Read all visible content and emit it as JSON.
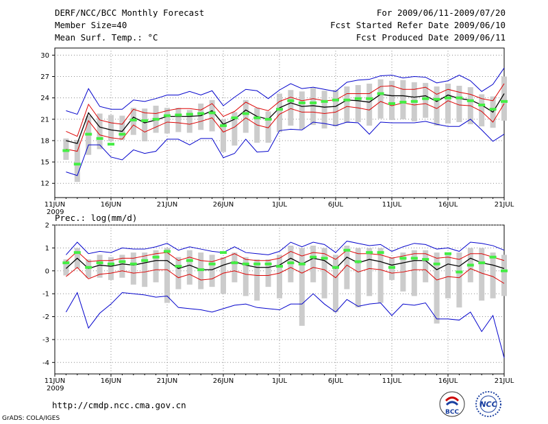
{
  "header": {
    "title": "DERF/NCC/BCC Monthly Forecast",
    "member_size": "Member Size=40",
    "variable": "Mean Surf. Temp.: °C",
    "period": "For 2009/06/11-2009/07/20",
    "started": "Fcst Started Refer Date 2009/06/10",
    "produced": "Fcst Produced Date 2009/06/11"
  },
  "footer": {
    "url": "http://cmdp.ncc.cma.gov.cn",
    "grads": "GrADS: COLA/IGES",
    "logo_bcc": "BCC",
    "logo_ncc": "NCC"
  },
  "colors": {
    "envelope": "#0000cc",
    "spread": "#dd0000",
    "mean": "#000000",
    "median": "#44ee44",
    "box": "#cccccc",
    "grid": "#888888"
  },
  "chart_data": [
    {
      "type": "line",
      "title": "Mean Surf. Temp.: °C",
      "x_ticks": [
        "11JUN",
        "16JUN",
        "21JUN",
        "26JUN",
        "1JUL",
        "6JUL",
        "11JUL",
        "16JUL",
        "21JUL"
      ],
      "x_year": "2009",
      "xlim": [
        0,
        40
      ],
      "ylim": [
        10,
        31
      ],
      "y_ticks": [
        12,
        15,
        18,
        21,
        24,
        27,
        30
      ],
      "x": [
        0,
        1,
        2,
        3,
        4,
        5,
        6,
        7,
        8,
        9,
        10,
        11,
        12,
        13,
        14,
        15,
        16,
        17,
        18,
        19,
        20,
        21,
        22,
        23,
        24,
        25,
        26,
        27,
        28,
        29,
        30,
        31,
        32,
        33,
        34,
        35,
        36,
        37,
        38,
        39
      ],
      "series": [
        {
          "name": "max",
          "values": [
            22.2,
            21.7,
            25.3,
            22.8,
            22.4,
            22.4,
            23.7,
            23.5,
            23.9,
            24.4,
            24.4,
            24.9,
            24.4,
            25.0,
            22.9,
            24.1,
            25.2,
            25.0,
            23.9,
            25.1,
            26.0,
            25.3,
            25.5,
            25.2,
            24.9,
            26.2,
            26.5,
            26.6,
            27.1,
            27.2,
            26.8,
            27.0,
            26.9,
            26.1,
            26.4,
            27.2,
            26.4,
            24.9,
            25.9,
            28.2
          ]
        },
        {
          "name": "upper",
          "values": [
            19.3,
            18.6,
            23.1,
            20.9,
            20.5,
            20.3,
            22.4,
            21.9,
            21.8,
            22.2,
            22.5,
            22.5,
            22.3,
            23.2,
            21.4,
            22.1,
            23.4,
            22.6,
            22.2,
            23.5,
            24.1,
            23.6,
            23.9,
            23.6,
            23.7,
            24.6,
            24.6,
            24.6,
            25.6,
            25.7,
            25.2,
            25.2,
            25.5,
            24.5,
            25.2,
            24.8,
            24.5,
            23.9,
            23.6,
            26.0
          ]
        },
        {
          "name": "mean",
          "values": [
            18.0,
            17.6,
            21.9,
            19.9,
            19.5,
            19.3,
            21.3,
            20.5,
            20.9,
            21.4,
            21.4,
            21.4,
            21.5,
            22.2,
            20.3,
            21.0,
            22.3,
            21.4,
            21.0,
            22.6,
            23.3,
            22.8,
            22.9,
            22.7,
            22.8,
            23.7,
            23.6,
            23.4,
            24.5,
            24.3,
            24.3,
            24.1,
            24.3,
            23.5,
            24.4,
            23.9,
            23.7,
            23.0,
            22.0,
            24.6
          ]
        },
        {
          "name": "lower",
          "values": [
            16.8,
            16.5,
            20.8,
            18.8,
            18.4,
            18.2,
            20.2,
            19.2,
            19.9,
            20.6,
            20.5,
            20.3,
            20.7,
            21.2,
            19.2,
            19.9,
            21.2,
            20.2,
            19.8,
            21.7,
            22.5,
            22.0,
            22.0,
            21.8,
            22.0,
            22.8,
            22.6,
            22.3,
            23.5,
            22.9,
            23.3,
            23.0,
            23.2,
            22.5,
            23.6,
            23.0,
            22.9,
            22.1,
            20.6,
            23.2
          ]
        },
        {
          "name": "min",
          "values": [
            13.6,
            13.1,
            17.4,
            17.4,
            15.7,
            15.3,
            16.7,
            16.2,
            16.5,
            18.2,
            18.2,
            17.4,
            18.3,
            18.3,
            15.6,
            16.2,
            18.2,
            16.4,
            16.5,
            19.4,
            19.6,
            19.5,
            20.6,
            20.4,
            20.1,
            20.6,
            20.5,
            18.9,
            20.6,
            20.5,
            20.5,
            20.5,
            20.7,
            20.3,
            20.0,
            20.0,
            21.0,
            19.5,
            17.9,
            18.9
          ]
        }
      ],
      "boxes": {
        "low": [
          15.3,
          12.2,
          16.0,
          16.8,
          17.9,
          18.1,
          18.8,
          17.9,
          19.1,
          19.0,
          19.2,
          19.1,
          19.5,
          19.3,
          16.4,
          17.3,
          19.1,
          17.7,
          17.7,
          19.2,
          20.1,
          19.6,
          20.2,
          19.7,
          20.0,
          20.5,
          20.6,
          20.1,
          21.1,
          20.9,
          21.0,
          20.7,
          21.2,
          20.1,
          20.4,
          20.6,
          20.3,
          20.0,
          19.8,
          20.8
        ],
        "high": [
          18.3,
          18.1,
          21.5,
          21.8,
          21.6,
          21.5,
          22.6,
          22.5,
          22.9,
          22.6,
          22.6,
          22.3,
          23.2,
          23.7,
          21.0,
          22.0,
          23.7,
          22.6,
          22.1,
          24.6,
          25.1,
          24.9,
          25.4,
          25.0,
          25.1,
          25.6,
          25.8,
          26.0,
          26.6,
          26.4,
          26.5,
          26.2,
          26.1,
          25.6,
          26.0,
          25.7,
          25.5,
          24.5,
          24.2,
          27.0
        ],
        "median": [
          16.6,
          14.7,
          18.9,
          18.3,
          17.5,
          18.9,
          20.9,
          20.8,
          21.0,
          21.5,
          21.6,
          21.7,
          21.8,
          21.9,
          20.1,
          21.2,
          21.8,
          21.2,
          21.0,
          22.4,
          23.6,
          23.3,
          23.3,
          23.5,
          23.7,
          23.7,
          23.9,
          23.9,
          24.6,
          23.2,
          23.4,
          23.5,
          23.9,
          23.8,
          24.0,
          24.0,
          23.6,
          23.0,
          22.4,
          23.5
        ]
      }
    },
    {
      "type": "line",
      "title": "Prec.: log(mm/d)",
      "x_ticks": [
        "11JUN",
        "16JUN",
        "21JUN",
        "26JUN",
        "1JUL",
        "6JUL",
        "11JUL",
        "16JUL",
        "21JUL"
      ],
      "x_year": "2009",
      "xlim": [
        0,
        40
      ],
      "ylim": [
        -4.5,
        2
      ],
      "y_ticks": [
        -4,
        -3,
        -2,
        -1,
        0,
        1,
        2
      ],
      "x": [
        0,
        1,
        2,
        3,
        4,
        5,
        6,
        7,
        8,
        9,
        10,
        11,
        12,
        13,
        14,
        15,
        16,
        17,
        18,
        19,
        20,
        21,
        22,
        23,
        24,
        25,
        26,
        27,
        28,
        29,
        30,
        31,
        32,
        33,
        34,
        35,
        36,
        37,
        38,
        39
      ],
      "series": [
        {
          "name": "max",
          "values": [
            0.7,
            1.25,
            0.75,
            0.85,
            0.8,
            1.0,
            0.95,
            0.95,
            1.05,
            1.2,
            0.9,
            1.05,
            0.95,
            0.85,
            0.8,
            1.05,
            0.8,
            0.75,
            0.7,
            0.85,
            1.25,
            1.05,
            1.25,
            1.15,
            0.8,
            1.3,
            1.2,
            1.1,
            1.15,
            0.85,
            1.05,
            1.2,
            1.15,
            0.95,
            1.0,
            0.85,
            1.25,
            1.2,
            1.1,
            0.9
          ]
        },
        {
          "name": "upper",
          "values": [
            0.4,
            0.85,
            0.4,
            0.45,
            0.45,
            0.55,
            0.55,
            0.65,
            0.75,
            0.8,
            0.45,
            0.6,
            0.45,
            0.4,
            0.55,
            0.75,
            0.5,
            0.45,
            0.45,
            0.55,
            0.85,
            0.65,
            0.8,
            0.75,
            0.5,
            0.9,
            0.75,
            0.75,
            0.7,
            0.55,
            0.65,
            0.75,
            0.75,
            0.55,
            0.6,
            0.5,
            0.75,
            0.75,
            0.6,
            0.45
          ]
        },
        {
          "name": "mean",
          "values": [
            0.1,
            0.55,
            0.1,
            0.25,
            0.2,
            0.3,
            0.25,
            0.35,
            0.45,
            0.45,
            0.1,
            0.25,
            0.05,
            0.05,
            0.25,
            0.4,
            0.25,
            0.15,
            0.15,
            0.25,
            0.55,
            0.3,
            0.55,
            0.45,
            0.1,
            0.6,
            0.35,
            0.5,
            0.4,
            0.25,
            0.35,
            0.45,
            0.45,
            0.05,
            0.3,
            0.2,
            0.55,
            0.35,
            0.25,
            0.1
          ]
        },
        {
          "name": "lower",
          "values": [
            -0.25,
            0.15,
            -0.35,
            -0.15,
            -0.1,
            0.0,
            -0.1,
            -0.05,
            0.05,
            0.05,
            -0.3,
            -0.15,
            -0.4,
            -0.35,
            -0.1,
            0.0,
            -0.15,
            -0.2,
            -0.2,
            -0.1,
            0.15,
            -0.1,
            0.15,
            0.05,
            -0.3,
            0.25,
            -0.05,
            0.1,
            0.05,
            -0.1,
            -0.05,
            0.05,
            0.05,
            -0.4,
            -0.25,
            -0.3,
            0.1,
            -0.1,
            -0.25,
            -0.55
          ]
        },
        {
          "name": "min",
          "values": [
            -1.8,
            -0.95,
            -2.5,
            -1.85,
            -1.45,
            -0.95,
            -1.0,
            -1.05,
            -1.15,
            -1.1,
            -1.6,
            -1.65,
            -1.7,
            -1.8,
            -1.65,
            -1.5,
            -1.45,
            -1.6,
            -1.65,
            -1.7,
            -1.45,
            -1.45,
            -1.0,
            -1.45,
            -1.8,
            -1.25,
            -1.55,
            -1.45,
            -1.4,
            -1.95,
            -1.45,
            -1.5,
            -1.4,
            -2.1,
            -2.1,
            -2.15,
            -1.8,
            -2.65,
            -1.95,
            -3.8
          ]
        },
        {
          "name": "max_red",
          "values": [
            0.7,
            1.25,
            0.75,
            0.85,
            0.8,
            1.0,
            0.95,
            0.95,
            1.05,
            1.2,
            0.9,
            1.05,
            0.95,
            0.85,
            0.8,
            1.05,
            0.8,
            0.75,
            0.7,
            0.85,
            1.25,
            1.05,
            1.25,
            1.15,
            0.8,
            1.3,
            1.2,
            1.1,
            1.15,
            0.85,
            1.05,
            1.2,
            1.15,
            0.95,
            1.0,
            0.85,
            1.25,
            1.2,
            1.1,
            0.9
          ]
        }
      ],
      "boxes": {
        "low": [
          -0.2,
          0.1,
          -0.3,
          -0.3,
          -0.4,
          -0.3,
          -0.6,
          -0.7,
          -0.5,
          -1.4,
          -0.8,
          -0.6,
          -0.8,
          -0.7,
          -1.0,
          -0.5,
          -1.1,
          -1.3,
          -0.7,
          -1.2,
          -0.5,
          -2.4,
          -0.5,
          -1.2,
          -1.8,
          -0.8,
          -1.6,
          -1.1,
          -1.4,
          -0.4,
          -0.9,
          -1.1,
          -0.5,
          -2.3,
          -1.2,
          -1.6,
          -0.5,
          -1.3,
          -1.2,
          -1.1
        ],
        "high": [
          0.5,
          1.0,
          0.5,
          0.7,
          0.6,
          0.7,
          0.8,
          0.8,
          0.9,
          1.0,
          0.6,
          0.9,
          0.8,
          0.7,
          0.6,
          0.8,
          0.6,
          0.5,
          0.5,
          0.7,
          1.1,
          1.0,
          1.1,
          1.0,
          0.7,
          1.1,
          1.0,
          1.0,
          1.0,
          0.6,
          0.8,
          0.9,
          0.9,
          0.8,
          0.8,
          0.8,
          1.0,
          1.0,
          0.8,
          0.7
        ]
      },
      "medians": [
        0.35,
        0.8,
        0.15,
        0.35,
        0.3,
        0.4,
        0.3,
        0.45,
        0.6,
        0.85,
        0.2,
        0.45,
        0.05,
        0.3,
        0.8,
        0.35,
        0.3,
        0.3,
        0.3,
        0.2,
        0.35,
        0.3,
        0.6,
        0.55,
        0.15,
        0.9,
        0.4,
        0.8,
        0.8,
        0.15,
        0.55,
        0.55,
        0.5,
        0.3,
        0.75,
        -0.05,
        0.25,
        0.35,
        0.6,
        0.0
      ]
    }
  ]
}
